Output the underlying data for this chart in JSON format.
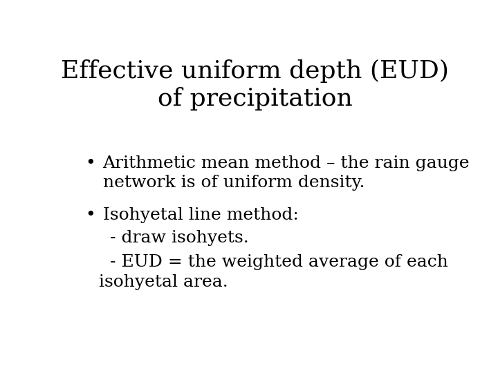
{
  "title_line1": "Effective uniform depth (EUD)",
  "title_line2": "of precipitation",
  "bullet1_line1": "Arithmetic mean method – the rain gauge",
  "bullet1_line2": "network is of uniform density.",
  "bullet2_line1": "Isohyetal line method:",
  "sub1": "  - draw isohyets.",
  "sub2": "  - EUD = the weighted average of each",
  "sub2b": "isohyetal area.",
  "background_color": "#ffffff",
  "text_color": "#000000",
  "title_fontsize": 26,
  "body_fontsize": 18,
  "bullet_char": "•",
  "font_family": "serif"
}
